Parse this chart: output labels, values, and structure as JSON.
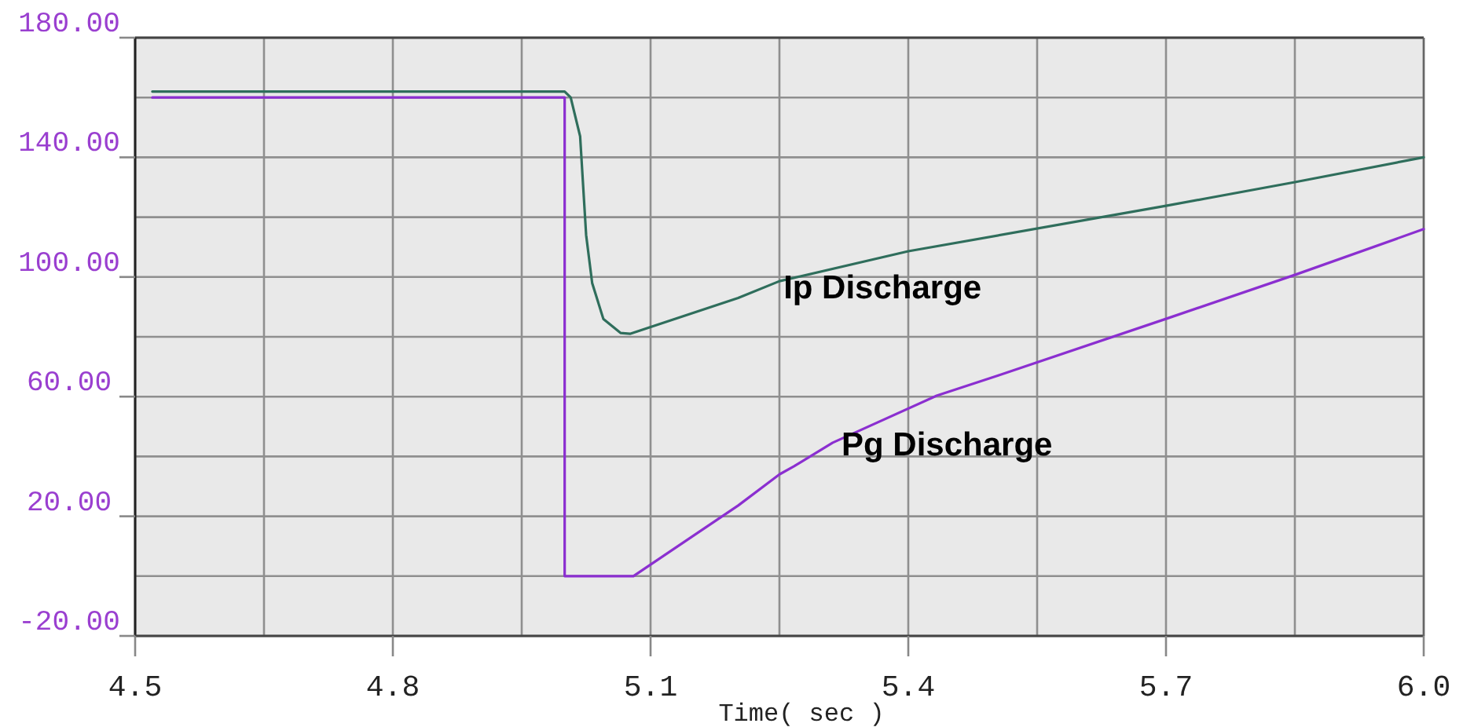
{
  "chart_data": {
    "type": "line",
    "xlabel": "Time( sec )",
    "xlim": [
      4.5,
      6.0
    ],
    "ylim": [
      -20,
      180
    ],
    "xticks": [
      4.5,
      {
        "value": 4.65,
        "label": null
      },
      4.8,
      {
        "value": 4.95,
        "label": null
      },
      5.1,
      {
        "value": 5.25,
        "label": null
      },
      5.4,
      {
        "value": 5.55,
        "label": null
      },
      5.7,
      {
        "value": 5.85,
        "label": null
      },
      {
        "value": 6.0,
        "label": "6.0"
      }
    ],
    "yticks": [
      {
        "value": -20,
        "label": "-20.00"
      },
      {
        "value": 0,
        "label": null
      },
      {
        "value": 20,
        "label": "20.00"
      },
      {
        "value": 40,
        "label": null
      },
      {
        "value": 60,
        "label": "60.00"
      },
      {
        "value": 80,
        "label": null
      },
      {
        "value": 100,
        "label": "100.00"
      },
      {
        "value": 120,
        "label": null
      },
      {
        "value": 140,
        "label": "140.00"
      },
      {
        "value": 160,
        "label": null
      },
      {
        "value": 180,
        "label": "180.00"
      }
    ],
    "grid": true,
    "marker": "none",
    "line_style": "solid",
    "series": [
      {
        "name": "Ip Discharge",
        "color": "#2f6e5c",
        "x": [
          4.52,
          5.0,
          5.007,
          5.018,
          5.025,
          5.032,
          5.045,
          5.065,
          5.076,
          5.202,
          5.25,
          5.4,
          5.7,
          5.85,
          6.0
        ],
        "values": [
          162,
          162,
          160,
          147,
          114,
          98,
          86,
          81.3,
          81,
          93,
          98.6,
          108.6,
          123.8,
          131.7,
          140
        ]
      },
      {
        "name": "Pg Discharge",
        "color": "#8b2fd0",
        "x": [
          4.52,
          5.0,
          5.0,
          5.069,
          5.08,
          5.202,
          5.25,
          5.267,
          5.312,
          5.433,
          5.504,
          5.7,
          5.85,
          6.0
        ],
        "values": [
          160,
          160,
          0,
          0,
          0,
          23.6,
          34,
          36.7,
          44.6,
          60.3,
          67,
          86,
          100.7,
          116
        ]
      }
    ]
  }
}
